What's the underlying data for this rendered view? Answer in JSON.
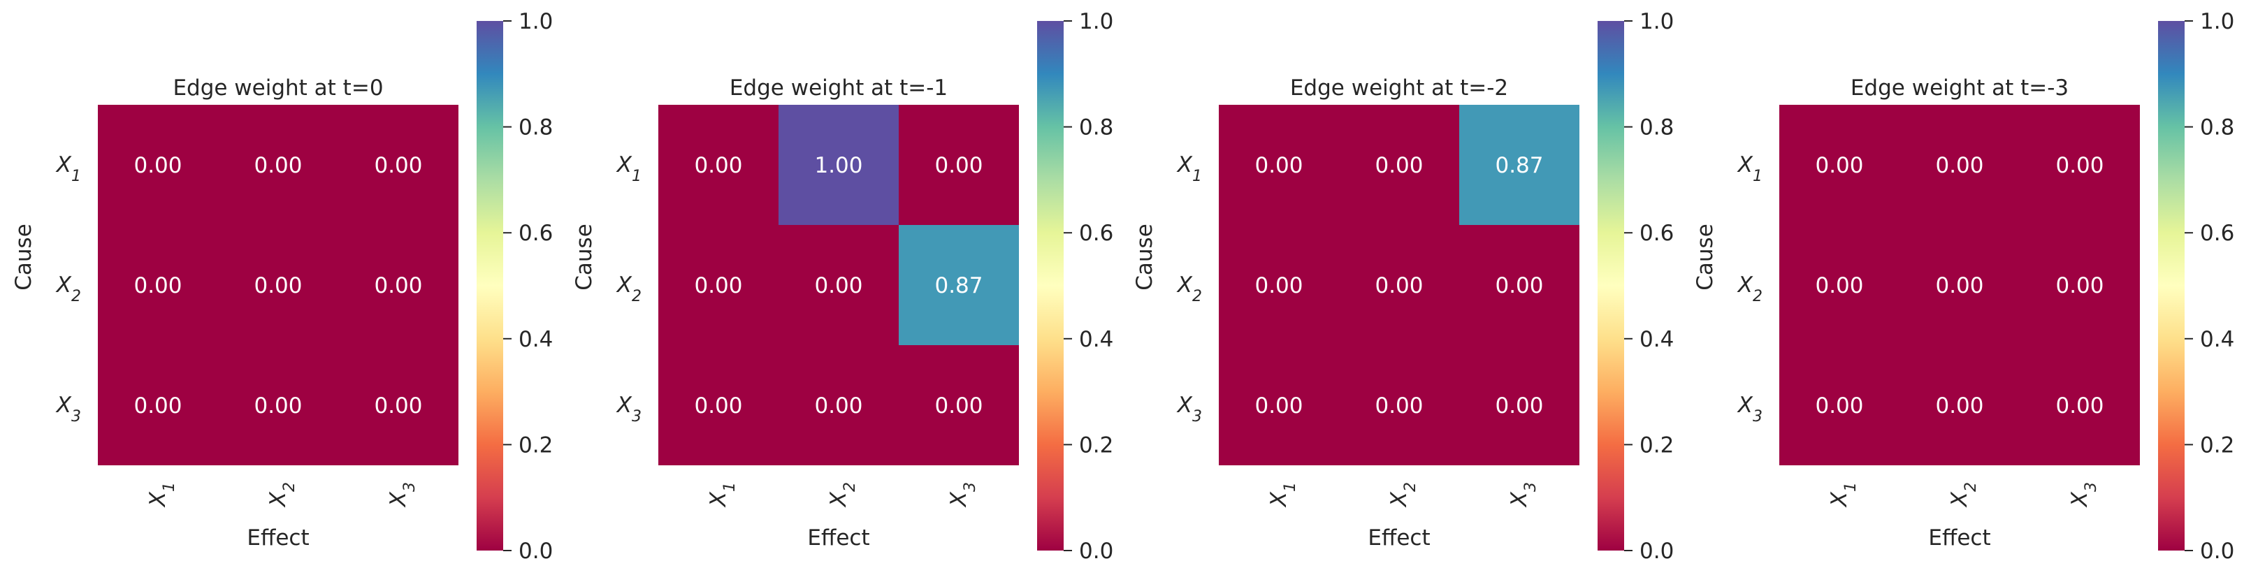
{
  "chart_data": [
    {
      "type": "heatmap",
      "title": "Edge weight at t=0",
      "xlabel": "Effect",
      "ylabel": "Cause",
      "row_labels": [
        "X1",
        "X2",
        "X3"
      ],
      "col_labels": [
        "X1",
        "X2",
        "X3"
      ],
      "values": [
        [
          0.0,
          0.0,
          0.0
        ],
        [
          0.0,
          0.0,
          0.0
        ],
        [
          0.0,
          0.0,
          0.0
        ]
      ],
      "colorbar": {
        "range": [
          0.0,
          1.0
        ],
        "ticks": [
          "0.0",
          "0.2",
          "0.4",
          "0.6",
          "0.8",
          "1.0"
        ],
        "colormap": "Spectral"
      }
    },
    {
      "type": "heatmap",
      "title": "Edge weight at t=-1",
      "xlabel": "Effect",
      "ylabel": "Cause",
      "row_labels": [
        "X1",
        "X2",
        "X3"
      ],
      "col_labels": [
        "X1",
        "X2",
        "X3"
      ],
      "values": [
        [
          0.0,
          1.0,
          0.0
        ],
        [
          0.0,
          0.0,
          0.87
        ],
        [
          0.0,
          0.0,
          0.0
        ]
      ],
      "colorbar": {
        "range": [
          0.0,
          1.0
        ],
        "ticks": [
          "0.0",
          "0.2",
          "0.4",
          "0.6",
          "0.8",
          "1.0"
        ],
        "colormap": "Spectral"
      }
    },
    {
      "type": "heatmap",
      "title": "Edge weight at t=-2",
      "xlabel": "Effect",
      "ylabel": "Cause",
      "row_labels": [
        "X1",
        "X2",
        "X3"
      ],
      "col_labels": [
        "X1",
        "X2",
        "X3"
      ],
      "values": [
        [
          0.0,
          0.0,
          0.87
        ],
        [
          0.0,
          0.0,
          0.0
        ],
        [
          0.0,
          0.0,
          0.0
        ]
      ],
      "colorbar": {
        "range": [
          0.0,
          1.0
        ],
        "ticks": [
          "0.0",
          "0.2",
          "0.4",
          "0.6",
          "0.8",
          "1.0"
        ],
        "colormap": "Spectral"
      }
    },
    {
      "type": "heatmap",
      "title": "Edge weight at t=-3",
      "xlabel": "Effect",
      "ylabel": "Cause",
      "row_labels": [
        "X1",
        "X2",
        "X3"
      ],
      "col_labels": [
        "X1",
        "X2",
        "X3"
      ],
      "values": [
        [
          0.0,
          0.0,
          0.0
        ],
        [
          0.0,
          0.0,
          0.0
        ],
        [
          0.0,
          0.0,
          0.0
        ]
      ],
      "colorbar": {
        "range": [
          0.0,
          1.0
        ],
        "ticks": [
          "0.0",
          "0.2",
          "0.4",
          "0.6",
          "0.8",
          "1.0"
        ],
        "colormap": "Spectral"
      }
    }
  ],
  "colors": {
    "value_0": "#9e0142",
    "value_087": "#3f96b7",
    "value_1": "#5e4fa2",
    "cell_text": "#ffffff",
    "axis_text": "#262626"
  }
}
